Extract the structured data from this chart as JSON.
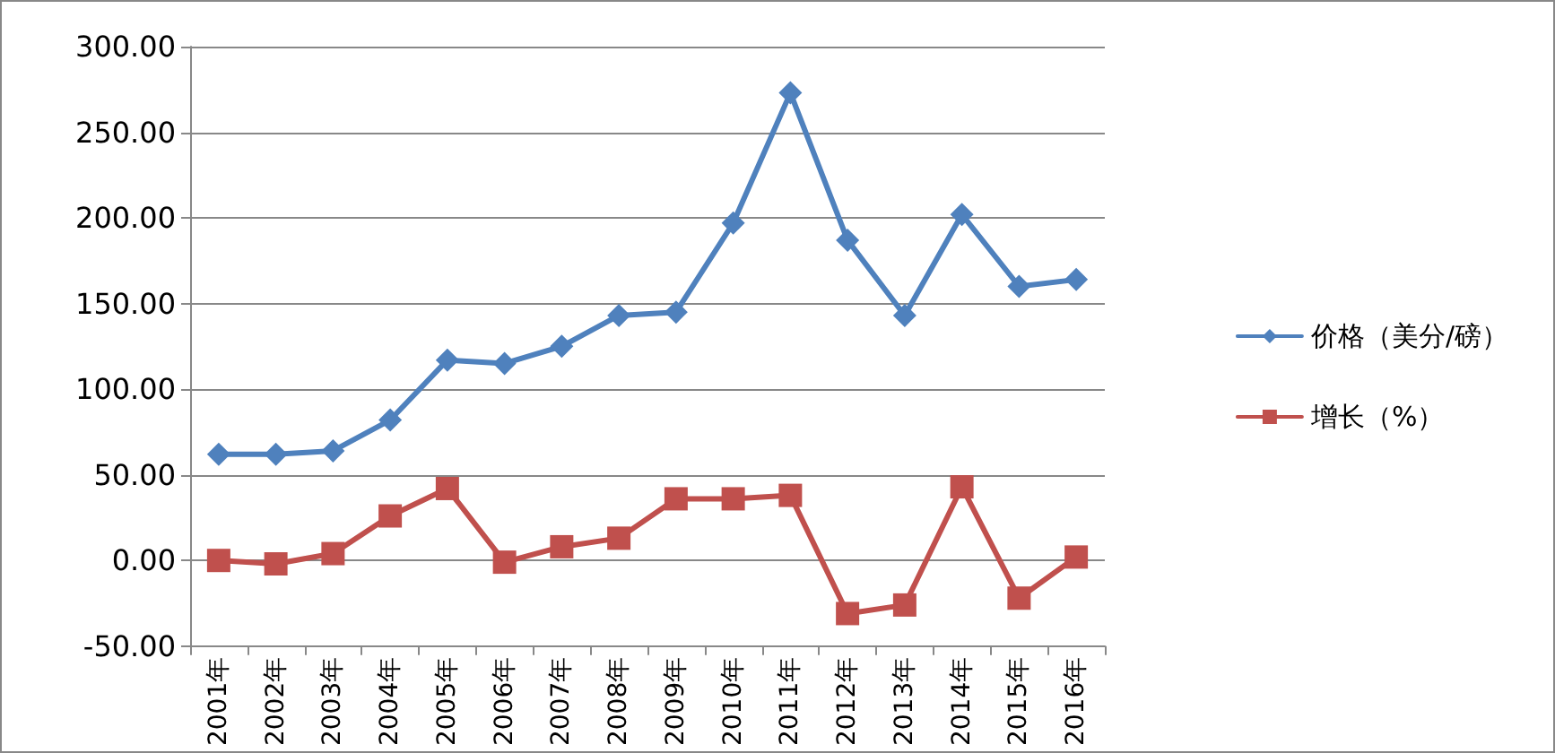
{
  "chart_data": {
    "type": "line",
    "categories": [
      "2001年",
      "2002年",
      "2003年",
      "2004年",
      "2005年",
      "2006年",
      "2007年",
      "2008年",
      "2009年",
      "2010年",
      "2011年",
      "2012年",
      "2013年",
      "2014年",
      "2015年",
      "2016年"
    ],
    "series": [
      {
        "name": "价格（美分/磅）",
        "color": "#4f81bd",
        "marker": "diamond",
        "values": [
          62,
          62,
          64,
          82,
          117,
          115,
          125,
          143,
          145,
          197,
          273,
          187,
          143,
          202,
          160,
          164
        ]
      },
      {
        "name": "增长（%）",
        "color": "#c0504d",
        "marker": "square",
        "values": [
          0,
          -2,
          4,
          26,
          42,
          -1,
          8,
          13,
          36,
          36,
          38,
          -31,
          -26,
          43,
          -22,
          2
        ]
      }
    ],
    "ylim": [
      -50,
      300
    ],
    "yticks": [
      {
        "value": -50,
        "label": "-50.00"
      },
      {
        "value": 0,
        "label": "0.00"
      },
      {
        "value": 50,
        "label": "50.00"
      },
      {
        "value": 100,
        "label": "100.00"
      },
      {
        "value": 150,
        "label": "150.00"
      },
      {
        "value": 200,
        "label": "200.00"
      },
      {
        "value": 250,
        "label": "250.00"
      },
      {
        "value": 300,
        "label": "300.00"
      }
    ],
    "grid": "y",
    "legend": "right",
    "line_style": "solid"
  }
}
